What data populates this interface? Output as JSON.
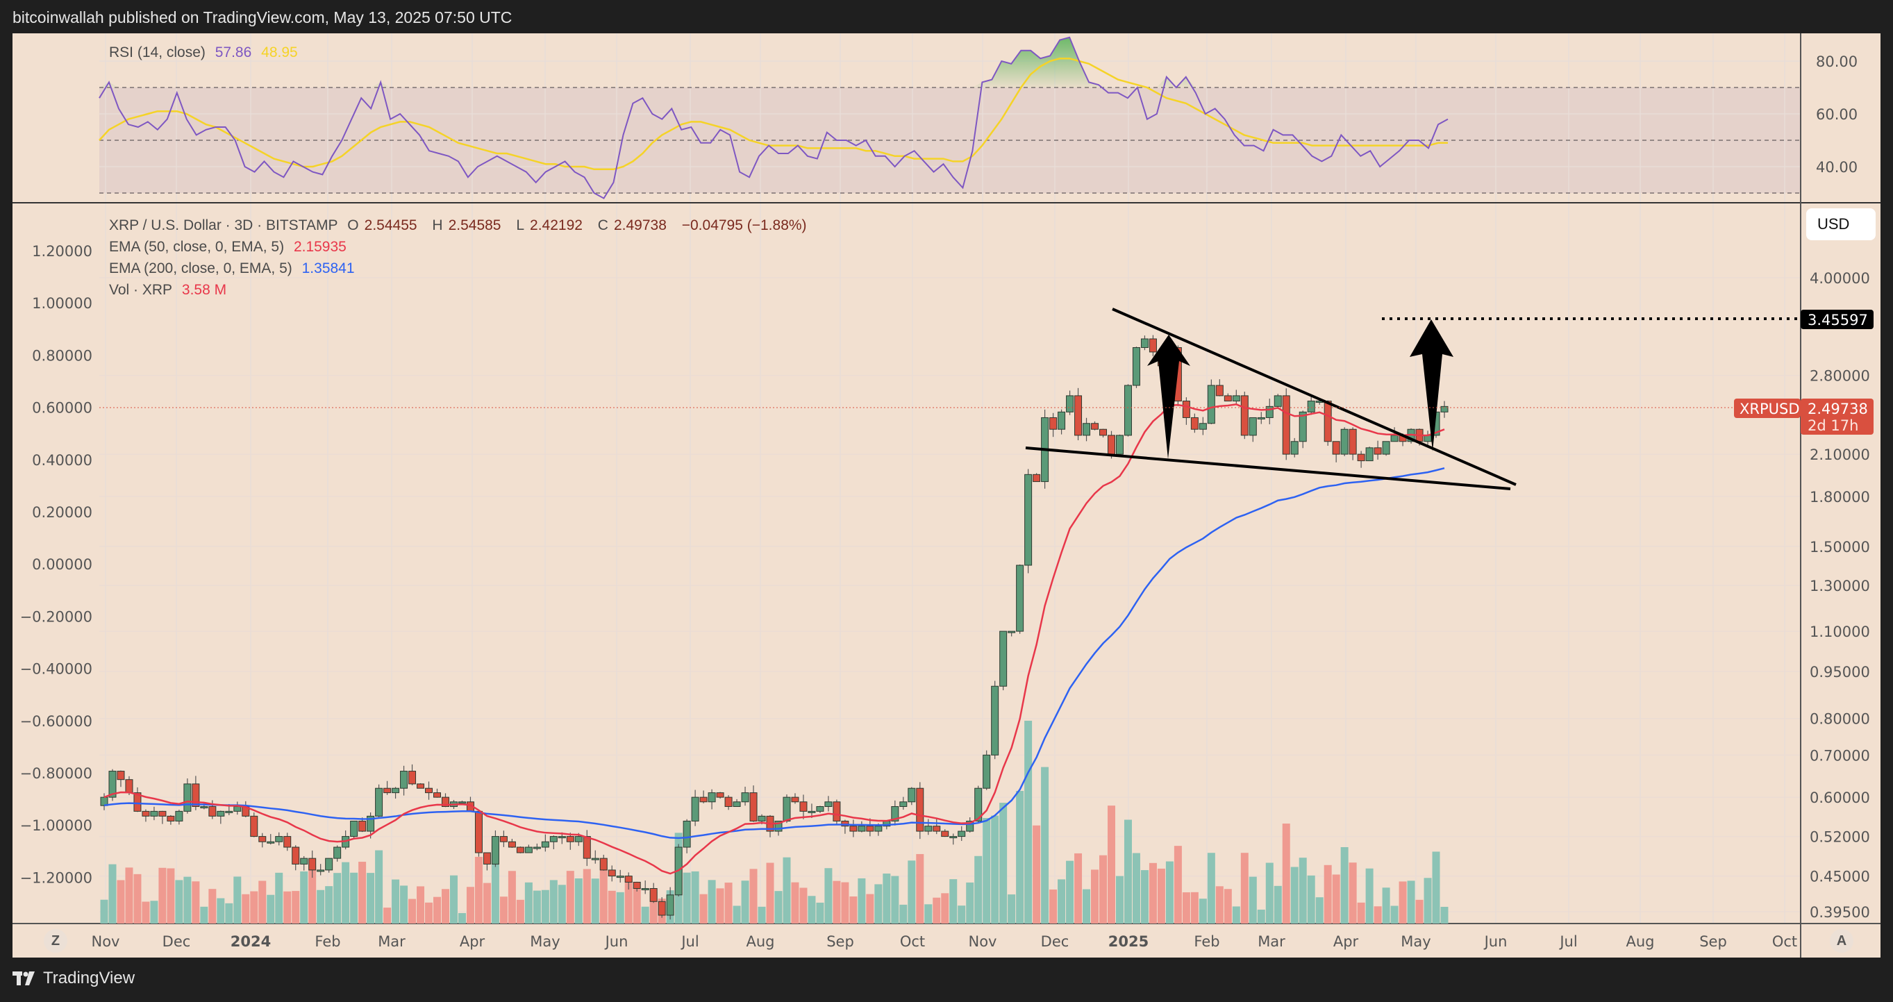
{
  "header": {
    "published": "bitcoinwallah published on TradingView.com, May 13, 2025 07:50 UTC"
  },
  "footer": {
    "brand": "TradingView"
  },
  "rsi_legend": {
    "label": "RSI (14, close)",
    "rsi": "57.86",
    "ma": "48.95"
  },
  "main_legend": {
    "symbol": "XRP / U.S. Dollar · 3D · BITSTAMP",
    "o_label": "O",
    "o": "2.54455",
    "h_label": "H",
    "h": "2.54585",
    "l_label": "L",
    "l": "2.42192",
    "c_label": "C",
    "c": "2.49738",
    "change": "−0.04795 (−1.88%)",
    "ema50_label": "EMA (50, close, 0, EMA, 5)",
    "ema50": "2.15935",
    "ema200_label": "EMA (200, close, 0, EMA, 5)",
    "ema200": "1.35841",
    "vol_label": "Vol · XRP",
    "vol": "3.58 M"
  },
  "right_axis": {
    "currency": "USD",
    "target_price": "3.45597",
    "last_symbol": "XRPUSD",
    "last_price": "2.49738",
    "countdown": "2d 17h"
  },
  "time_axis": {
    "left_button": "Z",
    "right_button": "A"
  },
  "colors": {
    "bg": "#f2e0d0",
    "up": "#5b9a78",
    "down": "#d9503f",
    "ema50": "#e8374a",
    "ema200": "#2d62f2",
    "rsi": "#7e57c2",
    "rsi_ma": "#f5d327",
    "vol_up": "#8cc3b5",
    "vol_down": "#ef9a90"
  },
  "chart_data": [
    {
      "type": "line",
      "title": "RSI (14, close)",
      "series": [
        {
          "name": "RSI",
          "last": 57.86
        },
        {
          "name": "RSI MA",
          "last": 48.95
        }
      ],
      "y_ticks": [
        80.0,
        60.0,
        40.0
      ],
      "bands": {
        "upper": 70,
        "middle": 50,
        "lower": 30
      },
      "rsi_values": [
        66,
        72,
        62,
        56,
        55,
        57,
        54,
        58,
        68,
        58,
        52,
        54,
        55,
        55,
        50,
        40,
        38,
        42,
        38,
        36,
        42,
        40,
        38,
        37,
        44,
        50,
        58,
        66,
        62,
        72,
        58,
        60,
        56,
        52,
        46,
        45,
        44,
        42,
        36,
        40,
        42,
        44,
        42,
        40,
        38,
        34,
        38,
        40,
        42,
        38,
        36,
        30,
        28,
        34,
        52,
        64,
        66,
        60,
        58,
        62,
        54,
        55,
        49,
        49,
        54,
        52,
        38,
        36,
        44,
        48,
        45,
        45,
        48,
        44,
        43,
        53,
        50,
        50,
        48,
        50,
        44,
        44,
        40,
        44,
        46,
        42,
        38,
        41,
        36,
        32,
        46,
        72,
        73,
        80,
        79,
        84,
        84,
        81,
        82,
        88,
        89,
        80,
        72,
        71,
        68,
        68,
        66,
        70,
        58,
        60,
        74,
        70,
        74,
        68,
        60,
        62,
        58,
        52,
        48,
        48,
        46,
        54,
        52,
        52,
        48,
        44,
        42,
        44,
        52,
        48,
        44,
        46,
        40,
        43,
        46,
        50,
        50,
        47,
        56,
        58
      ],
      "ma_values": [
        50,
        54,
        56,
        58,
        59,
        60,
        61,
        61,
        61,
        60,
        58,
        56,
        55,
        53,
        51,
        49,
        47,
        45,
        43,
        42,
        41,
        40,
        40,
        41,
        42,
        44,
        47,
        50,
        53,
        55,
        56,
        57,
        57,
        56,
        55,
        53,
        51,
        49,
        48,
        47,
        46,
        45,
        45,
        44,
        43,
        42,
        41,
        41,
        40,
        40,
        40,
        39,
        39,
        39,
        40,
        42,
        45,
        49,
        52,
        54,
        56,
        57,
        57,
        56,
        55,
        54,
        52,
        50,
        49,
        48,
        48,
        48,
        48,
        47,
        47,
        47,
        47,
        47,
        47,
        46,
        46,
        45,
        44,
        44,
        43,
        43,
        43,
        43,
        42,
        42,
        44,
        48,
        53,
        58,
        64,
        70,
        75,
        78,
        80,
        81,
        81,
        80,
        79,
        77,
        75,
        73,
        72,
        71,
        70,
        68,
        66,
        65,
        64,
        62,
        60,
        58,
        56,
        54,
        52,
        51,
        50,
        49,
        49,
        49,
        49,
        48,
        48,
        48,
        48,
        48,
        48,
        48,
        48,
        48,
        48,
        48,
        48,
        48,
        49,
        49
      ]
    },
    {
      "type": "candlestick",
      "title": "XRP / U.S. Dollar · 3D · BITSTAMP",
      "x_ticks": [
        "Nov",
        "Dec",
        "2024",
        "Feb",
        "Mar",
        "Apr",
        "May",
        "Jun",
        "Jul",
        "Aug",
        "Sep",
        "Oct",
        "Nov",
        "Dec",
        "2025",
        "Feb",
        "Mar",
        "Apr",
        "May",
        "Jun",
        "Jul",
        "Aug",
        "Sep",
        "Oct"
      ],
      "right_y_ticks": [
        4.0,
        2.8,
        2.1,
        1.8,
        1.5,
        1.3,
        1.1,
        0.95,
        0.8,
        0.7,
        0.6,
        0.52,
        0.45,
        0.395
      ],
      "left_y_ticks": [
        "1.20000",
        "1.00000",
        "0.80000",
        "0.60000",
        "0.40000",
        "0.20000",
        "0.00000",
        "−0.20000",
        "−0.40000",
        "−0.60000",
        "−0.80000",
        "−1.00000",
        "−1.20000"
      ],
      "last": {
        "open": 2.54455,
        "high": 2.54585,
        "low": 2.42192,
        "close": 2.49738,
        "change": -0.04795,
        "change_pct": -1.88
      },
      "ema50_last": 2.15935,
      "ema200_last": 1.35841,
      "volume_last": "3.58M",
      "target_line": 3.45597,
      "closes": [
        0.6,
        0.66,
        0.64,
        0.61,
        0.57,
        0.56,
        0.57,
        0.56,
        0.55,
        0.57,
        0.63,
        0.58,
        0.58,
        0.56,
        0.57,
        0.57,
        0.58,
        0.56,
        0.52,
        0.51,
        0.51,
        0.52,
        0.5,
        0.47,
        0.48,
        0.46,
        0.46,
        0.48,
        0.5,
        0.52,
        0.55,
        0.53,
        0.56,
        0.62,
        0.61,
        0.62,
        0.66,
        0.63,
        0.62,
        0.61,
        0.6,
        0.58,
        0.59,
        0.59,
        0.57,
        0.49,
        0.47,
        0.52,
        0.51,
        0.5,
        0.49,
        0.5,
        0.5,
        0.51,
        0.52,
        0.52,
        0.51,
        0.52,
        0.48,
        0.48,
        0.46,
        0.45,
        0.45,
        0.44,
        0.43,
        0.43,
        0.41,
        0.39,
        0.42,
        0.5,
        0.55,
        0.6,
        0.59,
        0.61,
        0.6,
        0.58,
        0.59,
        0.61,
        0.55,
        0.56,
        0.53,
        0.55,
        0.6,
        0.59,
        0.57,
        0.57,
        0.58,
        0.59,
        0.55,
        0.54,
        0.53,
        0.54,
        0.53,
        0.54,
        0.55,
        0.58,
        0.59,
        0.62,
        0.53,
        0.54,
        0.53,
        0.52,
        0.52,
        0.53,
        0.55,
        0.62,
        0.7,
        0.9,
        1.1,
        1.1,
        1.4,
        1.95,
        1.9,
        2.4,
        2.3,
        2.45,
        2.6,
        2.25,
        2.35,
        2.3,
        2.25,
        2.1,
        2.25,
        2.7,
        3.1,
        3.2,
        3.05,
        2.9,
        3.1,
        2.55,
        2.4,
        2.3,
        2.35,
        2.7,
        2.6,
        2.55,
        2.6,
        2.25,
        2.4,
        2.4,
        2.5,
        2.6,
        2.1,
        2.2,
        2.45,
        2.55,
        2.55,
        2.2,
        2.1,
        2.3,
        2.1,
        2.05,
        2.15,
        2.1,
        2.2,
        2.25,
        2.2,
        2.3,
        2.2,
        2.25,
        2.45,
        2.5
      ]
    },
    {
      "type": "bar",
      "title": "Vol · XRP",
      "last": "3.58M"
    }
  ]
}
